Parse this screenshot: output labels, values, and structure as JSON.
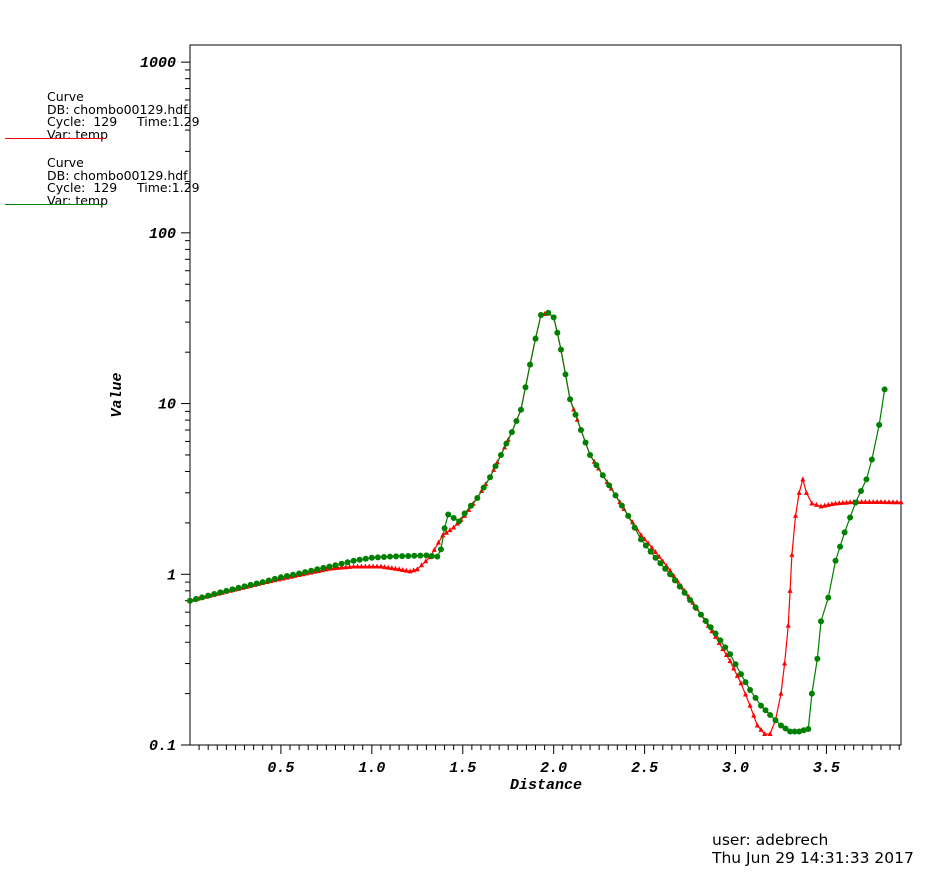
{
  "legend": [
    {
      "title": "Curve",
      "db": "DB: chombo00129.hdf",
      "cycle": "Cycle:  129",
      "time": "Time:1.29",
      "var": "Var: temp",
      "color": "#ff0000"
    },
    {
      "title": "Curve",
      "db": "DB: chombo00129.hdf",
      "cycle": "Cycle:  129",
      "time": "Time:1.29",
      "var": "Var: temp",
      "color": "#008000"
    }
  ],
  "user_info": {
    "user": "user: adebrech",
    "date": "Thu Jun 29 14:31:33 2017"
  },
  "chart_data": {
    "type": "line",
    "xlabel": "Distance",
    "ylabel": "Value",
    "xlim": [
      0,
      3.91
    ],
    "ylim": [
      0.1,
      1260
    ],
    "yscale": "log",
    "grid": false,
    "x_ticks": [
      0.5,
      1.0,
      1.5,
      2.0,
      2.5,
      3.0,
      3.5
    ],
    "x_tick_labels": [
      "0.5",
      "1.0",
      "1.5",
      "2.0",
      "2.5",
      "3.0",
      "3.5"
    ],
    "y_ticks": [
      0.1,
      1,
      10,
      100,
      1000
    ],
    "y_tick_labels": [
      "0.1",
      "1",
      "10",
      "100",
      "1000"
    ],
    "series": [
      {
        "color": "#ff0000",
        "marker": "triangle",
        "points": [
          [
            0,
            0.7
          ],
          [
            0.2,
            0.79
          ],
          [
            0.4,
            0.89
          ],
          [
            0.6,
            0.99
          ],
          [
            0.77,
            1.08
          ],
          [
            0.9,
            1.11
          ],
          [
            1.05,
            1.11
          ],
          [
            1.15,
            1.07
          ],
          [
            1.21,
            1.04
          ],
          [
            1.25,
            1.07
          ],
          [
            1.32,
            1.26
          ],
          [
            1.39,
            1.69
          ],
          [
            1.45,
            1.88
          ],
          [
            1.51,
            2.2
          ],
          [
            1.58,
            2.8
          ],
          [
            1.65,
            3.7
          ],
          [
            1.71,
            5.0
          ],
          [
            1.77,
            6.8
          ],
          [
            1.82,
            9.2
          ],
          [
            1.87,
            16.9
          ],
          [
            1.9,
            24
          ],
          [
            1.93,
            33
          ],
          [
            1.97,
            34
          ],
          [
            2.0,
            32
          ],
          [
            2.02,
            26
          ],
          [
            2.04,
            20.7
          ],
          [
            2.09,
            10.6
          ],
          [
            2.15,
            7
          ],
          [
            2.2,
            5.0
          ],
          [
            2.27,
            3.8
          ],
          [
            2.34,
            2.9
          ],
          [
            2.41,
            2.2
          ],
          [
            2.48,
            1.7
          ],
          [
            2.56,
            1.35
          ],
          [
            2.64,
            1.05
          ],
          [
            2.72,
            0.8
          ],
          [
            2.81,
            0.58
          ],
          [
            2.89,
            0.43
          ],
          [
            2.97,
            0.31
          ],
          [
            3.03,
            0.23
          ],
          [
            3.08,
            0.17
          ],
          [
            3.12,
            0.13
          ],
          [
            3.16,
            0.116
          ],
          [
            3.19,
            0.116
          ],
          [
            3.22,
            0.14
          ],
          [
            3.25,
            0.2
          ],
          [
            3.27,
            0.3
          ],
          [
            3.29,
            0.5
          ],
          [
            3.3,
            0.8
          ],
          [
            3.31,
            1.3
          ],
          [
            3.33,
            2.2
          ],
          [
            3.35,
            3.0
          ],
          [
            3.37,
            3.6
          ],
          [
            3.39,
            3.0
          ],
          [
            3.42,
            2.6
          ],
          [
            3.47,
            2.5
          ],
          [
            3.55,
            2.6
          ],
          [
            3.65,
            2.65
          ],
          [
            3.8,
            2.65
          ],
          [
            3.91,
            2.64
          ]
        ]
      },
      {
        "color": "#008000",
        "marker": "circle",
        "points": [
          [
            0,
            0.7
          ],
          [
            0.1,
            0.75
          ],
          [
            0.2,
            0.8
          ],
          [
            0.3,
            0.85
          ],
          [
            0.4,
            0.9
          ],
          [
            0.5,
            0.96
          ],
          [
            0.6,
            1.01
          ],
          [
            0.7,
            1.07
          ],
          [
            0.8,
            1.13
          ],
          [
            0.9,
            1.2
          ],
          [
            1.0,
            1.25
          ],
          [
            1.1,
            1.27
          ],
          [
            1.2,
            1.28
          ],
          [
            1.3,
            1.29
          ],
          [
            1.36,
            1.27
          ],
          [
            1.38,
            1.4
          ],
          [
            1.4,
            1.86
          ],
          [
            1.42,
            2.24
          ],
          [
            1.48,
            2.04
          ],
          [
            1.51,
            2.27
          ],
          [
            1.58,
            2.8
          ],
          [
            1.65,
            3.7
          ],
          [
            1.71,
            5.0
          ],
          [
            1.77,
            6.8
          ],
          [
            1.82,
            9.2
          ],
          [
            1.87,
            16.9
          ],
          [
            1.9,
            24
          ],
          [
            1.93,
            33
          ],
          [
            1.97,
            34
          ],
          [
            2.0,
            32
          ],
          [
            2.02,
            26
          ],
          [
            2.04,
            20.7
          ],
          [
            2.09,
            10.6
          ],
          [
            2.15,
            7
          ],
          [
            2.2,
            5.0
          ],
          [
            2.27,
            3.8
          ],
          [
            2.34,
            2.9
          ],
          [
            2.41,
            2.2
          ],
          [
            2.48,
            1.6
          ],
          [
            2.56,
            1.25
          ],
          [
            2.64,
            1.0
          ],
          [
            2.72,
            0.78
          ],
          [
            2.81,
            0.58
          ],
          [
            2.89,
            0.45
          ],
          [
            2.97,
            0.34
          ],
          [
            3.03,
            0.26
          ],
          [
            3.08,
            0.21
          ],
          [
            3.14,
            0.17
          ],
          [
            3.19,
            0.15
          ],
          [
            3.25,
            0.13
          ],
          [
            3.3,
            0.12
          ],
          [
            3.35,
            0.12
          ],
          [
            3.4,
            0.124
          ],
          [
            3.42,
            0.2
          ],
          [
            3.45,
            0.32
          ],
          [
            3.47,
            0.53
          ],
          [
            3.51,
            0.73
          ],
          [
            3.55,
            1.2
          ],
          [
            3.6,
            1.76
          ],
          [
            3.66,
            2.63
          ],
          [
            3.72,
            3.6
          ],
          [
            3.75,
            4.7
          ],
          [
            3.79,
            7.5
          ],
          [
            3.82,
            12.1
          ]
        ]
      }
    ]
  }
}
